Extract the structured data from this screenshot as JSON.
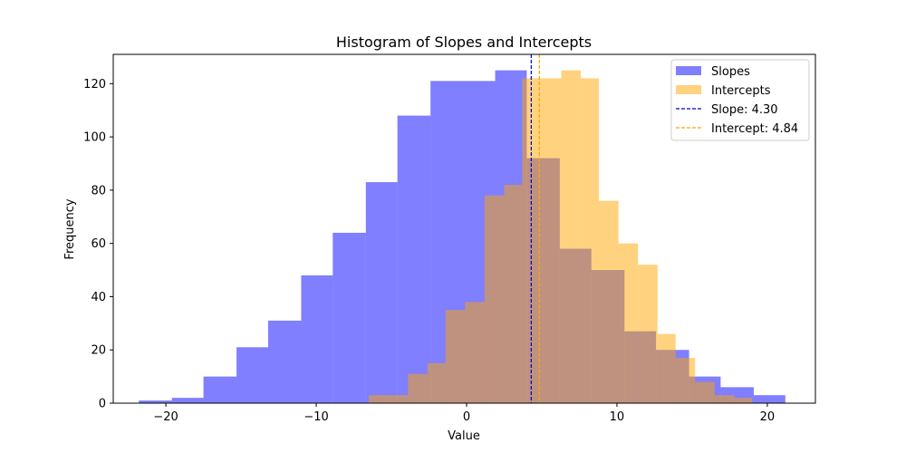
{
  "chart_data": {
    "type": "histogram",
    "title": "Histogram of Slopes and Intercepts",
    "xlabel": "Value",
    "ylabel": "Frequency",
    "xlim": [
      -23.5,
      23.2
    ],
    "ylim": [
      0,
      131
    ],
    "x_ticks": [
      {
        "value": -20,
        "label": "−20"
      },
      {
        "value": -10,
        "label": "−10"
      },
      {
        "value": 0,
        "label": "0"
      },
      {
        "value": 10,
        "label": "10"
      },
      {
        "value": 20,
        "label": "20"
      }
    ],
    "y_ticks": [
      {
        "value": 0,
        "label": "0"
      },
      {
        "value": 20,
        "label": "20"
      },
      {
        "value": 40,
        "label": "40"
      },
      {
        "value": 60,
        "label": "60"
      },
      {
        "value": 80,
        "label": "80"
      },
      {
        "value": 100,
        "label": "100"
      },
      {
        "value": 120,
        "label": "120"
      }
    ],
    "grid": false,
    "legend_position": "top-right",
    "series": [
      {
        "name": "Slopes",
        "color": "#0000ff",
        "alpha": 0.5,
        "bins": [
          {
            "x0": -21.8,
            "x1": -19.6,
            "count": 1
          },
          {
            "x0": -19.6,
            "x1": -17.5,
            "count": 2
          },
          {
            "x0": -17.5,
            "x1": -15.3,
            "count": 10
          },
          {
            "x0": -15.3,
            "x1": -13.2,
            "count": 21
          },
          {
            "x0": -13.2,
            "x1": -11.0,
            "count": 31
          },
          {
            "x0": -11.0,
            "x1": -8.9,
            "count": 48
          },
          {
            "x0": -8.9,
            "x1": -6.7,
            "count": 64
          },
          {
            "x0": -6.7,
            "x1": -4.6,
            "count": 83
          },
          {
            "x0": -4.6,
            "x1": -2.4,
            "count": 108
          },
          {
            "x0": -2.4,
            "x1": -0.3,
            "count": 121
          },
          {
            "x0": -0.3,
            "x1": 1.9,
            "count": 121
          },
          {
            "x0": 1.9,
            "x1": 4.0,
            "count": 125
          },
          {
            "x0": 4.0,
            "x1": 6.2,
            "count": 92
          },
          {
            "x0": 6.2,
            "x1": 8.3,
            "count": 58
          },
          {
            "x0": 8.3,
            "x1": 10.5,
            "count": 50
          },
          {
            "x0": 10.5,
            "x1": 12.6,
            "count": 27
          },
          {
            "x0": 12.6,
            "x1": 14.8,
            "count": 20
          },
          {
            "x0": 14.8,
            "x1": 16.9,
            "count": 10
          },
          {
            "x0": 16.9,
            "x1": 19.1,
            "count": 6
          },
          {
            "x0": 19.1,
            "x1": 21.2,
            "count": 3
          }
        ]
      },
      {
        "name": "Intercepts",
        "color": "#ffa500",
        "alpha": 0.5,
        "bins": [
          {
            "x0": -6.5,
            "x1": -3.9,
            "count": 3
          },
          {
            "x0": -3.9,
            "x1": -2.6,
            "count": 11
          },
          {
            "x0": -2.6,
            "x1": -1.4,
            "count": 15
          },
          {
            "x0": -1.4,
            "x1": -0.1,
            "count": 35
          },
          {
            "x0": -0.1,
            "x1": 1.2,
            "count": 38
          },
          {
            "x0": 1.2,
            "x1": 2.5,
            "count": 78
          },
          {
            "x0": 2.5,
            "x1": 3.7,
            "count": 82
          },
          {
            "x0": 3.7,
            "x1": 5.0,
            "count": 122
          },
          {
            "x0": 5.0,
            "x1": 6.3,
            "count": 122
          },
          {
            "x0": 6.3,
            "x1": 7.6,
            "count": 125
          },
          {
            "x0": 7.6,
            "x1": 8.8,
            "count": 122
          },
          {
            "x0": 8.8,
            "x1": 10.1,
            "count": 76
          },
          {
            "x0": 10.1,
            "x1": 11.4,
            "count": 60
          },
          {
            "x0": 11.4,
            "x1": 12.7,
            "count": 52
          },
          {
            "x0": 12.7,
            "x1": 13.9,
            "count": 26
          },
          {
            "x0": 13.9,
            "x1": 15.2,
            "count": 17
          },
          {
            "x0": 15.2,
            "x1": 16.5,
            "count": 8
          },
          {
            "x0": 16.5,
            "x1": 17.8,
            "count": 3
          },
          {
            "x0": 17.8,
            "x1": 19.0,
            "count": 2
          }
        ]
      }
    ],
    "reference_lines": [
      {
        "name": "Slope: 4.30",
        "value": 4.3,
        "color": "#0000cc",
        "style": "dashed"
      },
      {
        "name": "Intercept: 4.84",
        "value": 4.84,
        "color": "#ffa500",
        "style": "dashed"
      }
    ]
  }
}
